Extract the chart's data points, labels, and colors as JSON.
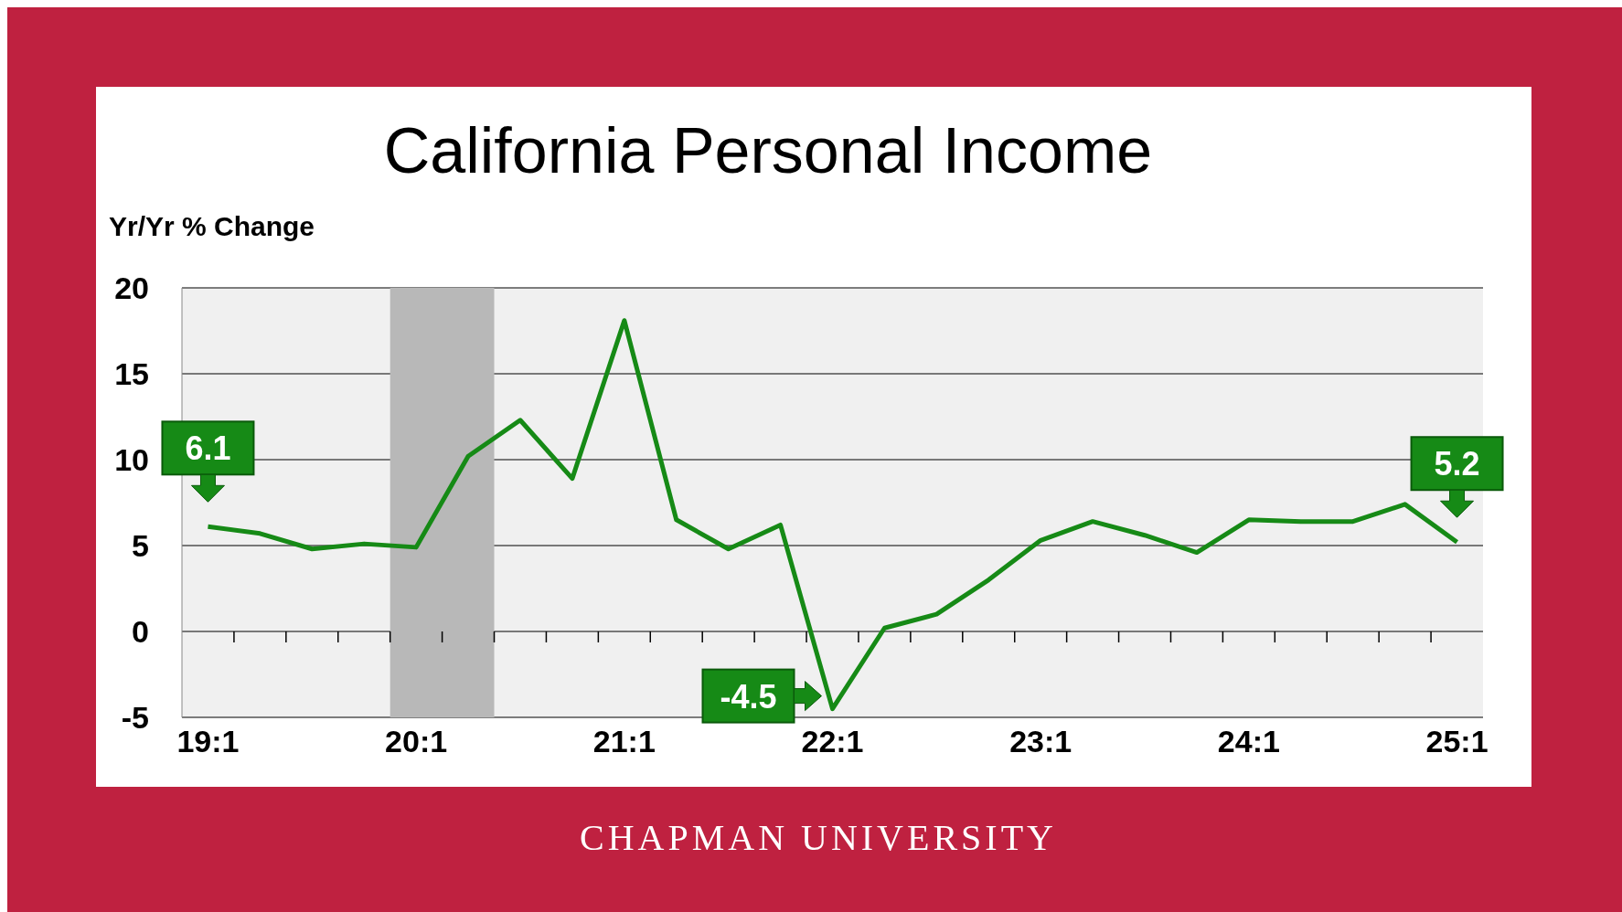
{
  "chart_data": {
    "type": "line",
    "title": "California Personal Income",
    "ylabel": "Yr/Yr % Change",
    "categories": [
      "19:1",
      null,
      null,
      null,
      "20:1",
      null,
      null,
      null,
      "21:1",
      null,
      null,
      null,
      "22:1",
      null,
      null,
      null,
      "23:1",
      null,
      null,
      null,
      "24:1",
      null,
      null,
      null,
      "25:1"
    ],
    "series": [
      {
        "color": "#168a16",
        "values": [
          6.1,
          5.7,
          4.8,
          5.1,
          4.9,
          10.2,
          12.3,
          8.9,
          18.1,
          6.5,
          4.8,
          6.2,
          -4.5,
          0.2,
          1.0,
          3.0,
          5.3,
          6.4,
          5.6,
          4.6,
          6.5,
          6.4,
          6.4,
          7.4,
          5.2
        ],
        "value_labels": [
          "6.1",
          null,
          null,
          null,
          null,
          null,
          null,
          null,
          null,
          null,
          null,
          null,
          "-4.5",
          null,
          null,
          null,
          null,
          null,
          null,
          null,
          null,
          null,
          null,
          null,
          "5.2"
        ]
      }
    ],
    "ylim": [
      -5,
      20
    ],
    "yticks": [
      -5,
      0,
      5,
      10,
      15,
      20
    ],
    "grid": "y",
    "marker": "none",
    "line_style": "solid",
    "annotations": [
      "CHAPMAN UNIVERSITY"
    ]
  }
}
